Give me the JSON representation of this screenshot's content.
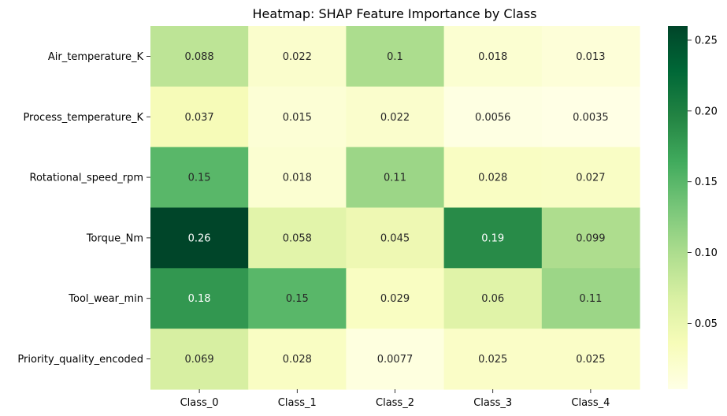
{
  "chart_data": {
    "type": "heatmap",
    "title": "Heatmap: SHAP Feature Importance by Class",
    "xlabel": "",
    "ylabel": "",
    "columns": [
      "Class_0",
      "Class_1",
      "Class_2",
      "Class_3",
      "Class_4"
    ],
    "rows": [
      "Air_temperature_K",
      "Process_temperature_K",
      "Rotational_speed_rpm",
      "Torque_Nm",
      "Tool_wear_min",
      "Priority_quality_encoded"
    ],
    "values": [
      [
        0.088,
        0.022,
        0.1,
        0.018,
        0.013
      ],
      [
        0.037,
        0.015,
        0.022,
        0.0056,
        0.0035
      ],
      [
        0.15,
        0.018,
        0.11,
        0.028,
        0.027
      ],
      [
        0.26,
        0.058,
        0.045,
        0.19,
        0.099
      ],
      [
        0.18,
        0.15,
        0.029,
        0.06,
        0.11
      ],
      [
        0.069,
        0.028,
        0.0077,
        0.025,
        0.025
      ]
    ],
    "value_labels": [
      [
        "0.088",
        "0.022",
        "0.1",
        "0.018",
        "0.013"
      ],
      [
        "0.037",
        "0.015",
        "0.022",
        "0.0056",
        "0.0035"
      ],
      [
        "0.15",
        "0.018",
        "0.11",
        "0.028",
        "0.027"
      ],
      [
        "0.26",
        "0.058",
        "0.045",
        "0.19",
        "0.099"
      ],
      [
        "0.18",
        "0.15",
        "0.029",
        "0.06",
        "0.11"
      ],
      [
        "0.069",
        "0.028",
        "0.0077",
        "0.025",
        "0.025"
      ]
    ],
    "colormap": "YlGn",
    "color_range": [
      0.0035,
      0.26
    ],
    "colorbar_ticks": [
      0.05,
      0.1,
      0.15,
      0.2,
      0.25
    ],
    "colorbar_tick_labels": [
      "0.05",
      "0.10",
      "0.15",
      "0.20",
      "0.25"
    ],
    "annotation_colors": {
      "dark": "#262626",
      "light": "#ffffff"
    }
  }
}
